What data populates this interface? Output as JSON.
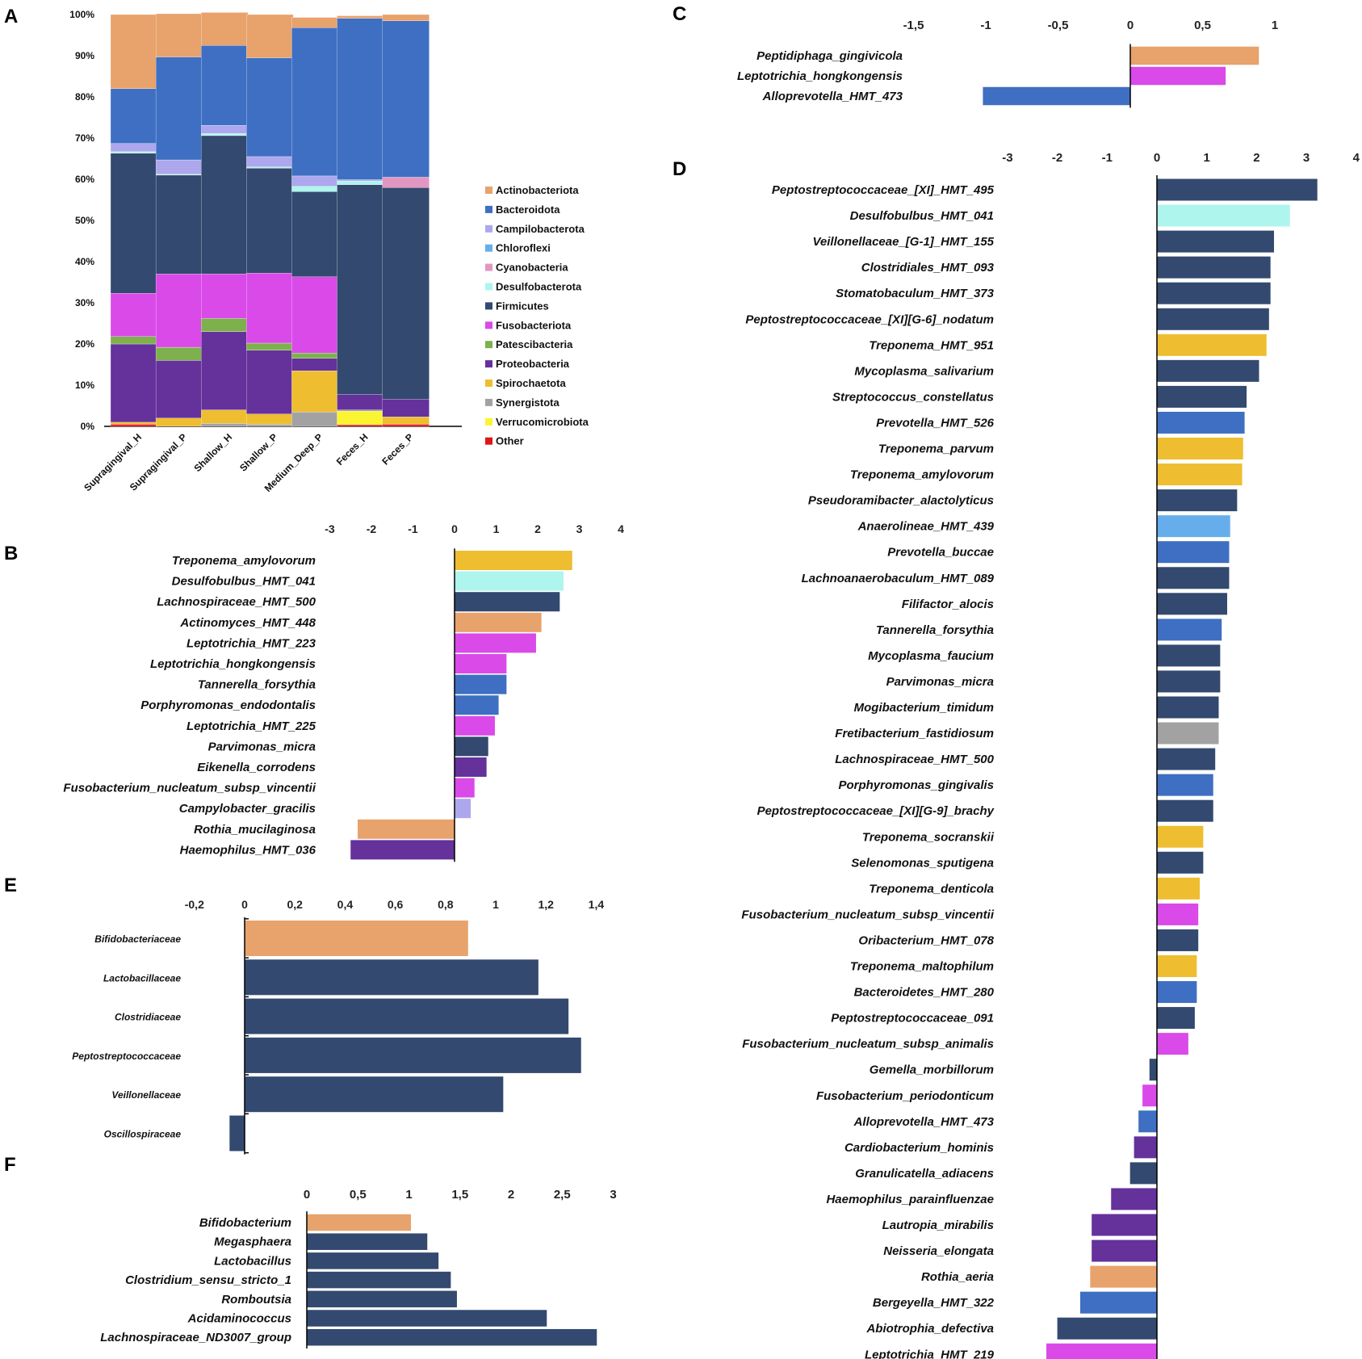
{
  "colors": {
    "Actinobacteriota": "#E8A26B",
    "Bacteroidota": "#3E6FC2",
    "Campilobacterota": "#ADA7EE",
    "Chloroflexi": "#66AEEB",
    "Cyanobacteria": "#E396C1",
    "Desulfobacterota": "#AEF5EE",
    "Firmicutes": "#33496F",
    "Fusobacteriota": "#D94AE8",
    "Patescibacteria": "#7EB04D",
    "Proteobacteria": "#65319B",
    "Spirochaetota": "#EEBE30",
    "Synergistota": "#A2A2A2",
    "Verrucomicrobiota": "#FAF530",
    "Other": "#E0141A"
  },
  "chart_data": [
    {
      "id": "A",
      "panel_label": "A",
      "type": "bar",
      "stacked": true,
      "ylim": [
        0,
        100
      ],
      "yticks": [
        "0%",
        "10%",
        "20%",
        "30%",
        "40%",
        "50%",
        "60%",
        "70%",
        "80%",
        "90%",
        "100%"
      ],
      "categories": [
        "Supragingival_H",
        "Supragingival_P",
        "Shallow_H",
        "Shallow_P",
        "Medium_Deep_P",
        "Feces_H",
        "Feces_P"
      ],
      "legend": [
        "Actinobacteriota",
        "Bacteroidota",
        "Campilobacterota",
        "Chloroflexi",
        "Cyanobacteria",
        "Desulfobacterota",
        "Firmicutes",
        "Fusobacteriota",
        "Patescibacteria",
        "Proteobacteria",
        "Spirochaetota",
        "Synergistota",
        "Verrucomicrobiota",
        "Other"
      ],
      "series": [
        {
          "name": "Actinobacteriota",
          "values": [
            18,
            10.5,
            8,
            10.5,
            2.5,
            0.6,
            1.5
          ]
        },
        {
          "name": "Bacteroidota",
          "values": [
            13.3,
            25,
            19.4,
            24,
            36,
            39.2,
            38
          ]
        },
        {
          "name": "Campilobacterota",
          "values": [
            2,
            3.5,
            2,
            2.5,
            2.5,
            0.3,
            0
          ]
        },
        {
          "name": "Chloroflexi",
          "values": [
            0,
            0,
            0,
            0,
            0,
            0,
            0
          ]
        },
        {
          "name": "Cyanobacteria",
          "values": [
            0,
            0,
            0,
            0,
            0,
            0,
            2.5
          ]
        },
        {
          "name": "Desulfobacterota",
          "values": [
            0.4,
            0.2,
            0.5,
            0.3,
            1.3,
            0.9,
            0
          ]
        },
        {
          "name": "Firmicutes",
          "values": [
            34,
            24,
            33.6,
            25.5,
            20.7,
            51,
            51.4
          ]
        },
        {
          "name": "Fusobacteriota",
          "values": [
            10.5,
            17.8,
            10.8,
            17,
            18.5,
            0,
            0
          ]
        },
        {
          "name": "Patescibacteria",
          "values": [
            1.8,
            3.2,
            3.2,
            1.7,
            1.3,
            0,
            0
          ]
        },
        {
          "name": "Proteobacteria",
          "values": [
            19,
            14,
            19,
            15.5,
            3,
            3.7,
            4.3
          ]
        },
        {
          "name": "Spirochaetota",
          "values": [
            0.5,
            2,
            3.3,
            2.5,
            10,
            0,
            1.8
          ]
        },
        {
          "name": "Synergistota",
          "values": [
            0,
            0,
            0.7,
            0.5,
            3.5,
            0.3,
            0
          ]
        },
        {
          "name": "Verrucomicrobiota",
          "values": [
            0,
            0,
            0,
            0,
            0,
            3.3,
            0
          ]
        },
        {
          "name": "Other",
          "values": [
            0.5,
            0,
            0,
            0,
            0,
            0.4,
            0.5
          ]
        }
      ]
    },
    {
      "id": "B",
      "panel_label": "B",
      "type": "bar",
      "orientation": "horizontal",
      "xlim": [
        -3,
        4
      ],
      "ticks": [
        -3,
        -2,
        -1,
        0,
        1,
        2,
        3,
        4
      ],
      "tick_labels": [
        "-3",
        "-2",
        "-1",
        "0",
        "1",
        "2",
        "3",
        "4"
      ],
      "categories": [
        "Treponema_amylovorum",
        "Desulfobulbus_HMT_041",
        "Lachnospiraceae_HMT_500",
        "Actinomyces_HMT_448",
        "Leptotrichia_HMT_223",
        "Leptotrichia_hongkongensis",
        "Tannerella_forsythia",
        "Porphyromonas_endodontalis",
        "Leptotrichia_HMT_225",
        "Parvimonas_micra",
        "Eikenella_corrodens",
        "Fusobacterium_nucleatum_subsp_vincentii",
        "Campylobacter_gracilis",
        "Rothia_mucilaginosa",
        "Haemophilus_HMT_036"
      ],
      "values": [
        2.83,
        2.62,
        2.53,
        2.09,
        1.96,
        1.25,
        1.25,
        1.06,
        0.97,
        0.81,
        0.77,
        0.48,
        0.39,
        -2.33,
        -2.5
      ],
      "groups": [
        "Spirochaetota",
        "Desulfobacterota",
        "Firmicutes",
        "Actinobacteriota",
        "Fusobacteriota",
        "Fusobacteriota",
        "Bacteroidota",
        "Bacteroidota",
        "Fusobacteriota",
        "Firmicutes",
        "Proteobacteria",
        "Fusobacteriota",
        "Campilobacterota",
        "Actinobacteriota",
        "Proteobacteria"
      ]
    },
    {
      "id": "C",
      "panel_label": "C",
      "type": "bar",
      "orientation": "horizontal",
      "xlim": [
        -1.5,
        1
      ],
      "ticks": [
        -1.5,
        -1,
        -0.5,
        0,
        0.5,
        1
      ],
      "tick_labels": [
        "-1,5",
        "-1",
        "-0,5",
        "0",
        "0,5",
        "1"
      ],
      "categories": [
        "Peptidiphaga_gingivicola",
        "Leptotrichia_hongkongensis",
        "Alloprevotella_HMT_473"
      ],
      "values": [
        0.89,
        0.66,
        -1.02
      ],
      "groups": [
        "Actinobacteriota",
        "Fusobacteriota",
        "Bacteroidota"
      ]
    },
    {
      "id": "D",
      "panel_label": "D",
      "type": "bar",
      "orientation": "horizontal",
      "xlim": [
        -3,
        4
      ],
      "ticks": [
        -3,
        -2,
        -1,
        0,
        1,
        2,
        3,
        4
      ],
      "tick_labels": [
        "-3",
        "-2",
        "-1",
        "0",
        "1",
        "2",
        "3",
        "4"
      ],
      "categories": [
        "Peptostreptococcaceae_[XI]_HMT_495",
        "Desulfobulbus_HMT_041",
        "Veillonellaceae_[G-1]_HMT_155",
        "Clostridiales_HMT_093",
        "Stomatobaculum_HMT_373",
        "Peptostreptococcaceae_[XI][G-6]_nodatum",
        "Treponema_HMT_951",
        "Mycoplasma_salivarium",
        "Streptococcus_constellatus",
        "Prevotella_HMT_526",
        "Treponema_parvum",
        "Treponema_amylovorum",
        "Pseudoramibacter_alactolyticus",
        "Anaerolineae_HMT_439",
        "Prevotella_buccae",
        "Lachnoanaerobaculum_HMT_089",
        "Filifactor_alocis",
        "Tannerella_forsythia",
        "Mycoplasma_faucium",
        "Parvimonas_micra",
        "Mogibacterium_timidum",
        "Fretibacterium_fastidiosum",
        "Lachnospiraceae_HMT_500",
        "Porphyromonas_gingivalis",
        "Peptostreptococcaceae_[XI][G-9]_brachy",
        "Treponema_socranskii",
        "Selenomonas_sputigena",
        "Treponema_denticola",
        "Fusobacterium_nucleatum_subsp_vincentii",
        "Oribacterium_HMT_078",
        "Treponema_maltophilum",
        "Bacteroidetes_HMT_280",
        "Peptostreptococcaceae_091",
        "Fusobacterium_nucleatum_subsp_animalis",
        "Gemella_morbillorum",
        "Fusobacterium_periodonticum",
        "Alloprevotella_HMT_473",
        "Cardiobacterium_hominis",
        "Granulicatella_adiacens",
        "Haemophilus_parainfluenzae",
        "Lautropia_mirabilis",
        "Neisseria_elongata",
        "Rothia_aeria",
        "Bergeyella_HMT_322",
        "Abiotrophia_defectiva",
        "Leptotrichia_HMT_219"
      ],
      "values": [
        3.22,
        2.67,
        2.35,
        2.28,
        2.28,
        2.25,
        2.2,
        2.05,
        1.8,
        1.76,
        1.73,
        1.71,
        1.61,
        1.47,
        1.45,
        1.45,
        1.41,
        1.3,
        1.27,
        1.27,
        1.24,
        1.24,
        1.17,
        1.13,
        1.13,
        0.93,
        0.93,
        0.86,
        0.83,
        0.83,
        0.8,
        0.8,
        0.76,
        0.63,
        -0.15,
        -0.29,
        -0.37,
        -0.46,
        -0.54,
        -0.92,
        -1.31,
        -1.31,
        -1.34,
        -1.54,
        -2.0,
        -2.22
      ],
      "groups": [
        "Firmicutes",
        "Desulfobacterota",
        "Firmicutes",
        "Firmicutes",
        "Firmicutes",
        "Firmicutes",
        "Spirochaetota",
        "Firmicutes",
        "Firmicutes",
        "Bacteroidota",
        "Spirochaetota",
        "Spirochaetota",
        "Firmicutes",
        "Chloroflexi",
        "Bacteroidota",
        "Firmicutes",
        "Firmicutes",
        "Bacteroidota",
        "Firmicutes",
        "Firmicutes",
        "Firmicutes",
        "Synergistota",
        "Firmicutes",
        "Bacteroidota",
        "Firmicutes",
        "Spirochaetota",
        "Firmicutes",
        "Spirochaetota",
        "Fusobacteriota",
        "Firmicutes",
        "Spirochaetota",
        "Bacteroidota",
        "Firmicutes",
        "Fusobacteriota",
        "Firmicutes",
        "Fusobacteriota",
        "Bacteroidota",
        "Proteobacteria",
        "Firmicutes",
        "Proteobacteria",
        "Proteobacteria",
        "Proteobacteria",
        "Actinobacteriota",
        "Bacteroidota",
        "Firmicutes",
        "Fusobacteriota"
      ]
    },
    {
      "id": "E",
      "panel_label": "E",
      "type": "bar",
      "orientation": "horizontal",
      "xlim": [
        -0.2,
        1.4
      ],
      "ticks": [
        -0.2,
        0,
        0.2,
        0.4,
        0.6,
        0.8,
        1,
        1.2,
        1.4
      ],
      "tick_labels": [
        "-0,2",
        "0",
        "0,2",
        "0,4",
        "0,6",
        "0,8",
        "1",
        "1,2",
        "1,4"
      ],
      "categories": [
        "Bifidobacteriaceae",
        "Lactobacillaceae",
        "Clostridiaceae",
        "Peptostreptococcaceae",
        "Veillonellaceae",
        "Oscillospiraceae"
      ],
      "values": [
        0.89,
        1.17,
        1.29,
        1.34,
        1.03,
        -0.06
      ],
      "groups": [
        "Actinobacteriota",
        "Firmicutes",
        "Firmicutes",
        "Firmicutes",
        "Firmicutes",
        "Firmicutes"
      ]
    },
    {
      "id": "F",
      "panel_label": "F",
      "type": "bar",
      "orientation": "horizontal",
      "xlim": [
        0,
        3
      ],
      "ticks": [
        0,
        0.5,
        1,
        1.5,
        2,
        2.5,
        3
      ],
      "tick_labels": [
        "0",
        "0,5",
        "1",
        "1,5",
        "2",
        "2,5",
        "3"
      ],
      "categories": [
        "Bifidobacterium",
        "Megasphaera",
        "Lactobacillus",
        "Clostridium_sensu_stricto_1",
        "Romboutsia",
        "Acidaminococcus",
        "Lachnospiraceae_ND3007_group"
      ],
      "values": [
        1.02,
        1.18,
        1.29,
        1.41,
        1.47,
        2.35,
        2.84
      ],
      "groups": [
        "Actinobacteriota",
        "Firmicutes",
        "Firmicutes",
        "Firmicutes",
        "Firmicutes",
        "Firmicutes",
        "Firmicutes"
      ]
    }
  ]
}
